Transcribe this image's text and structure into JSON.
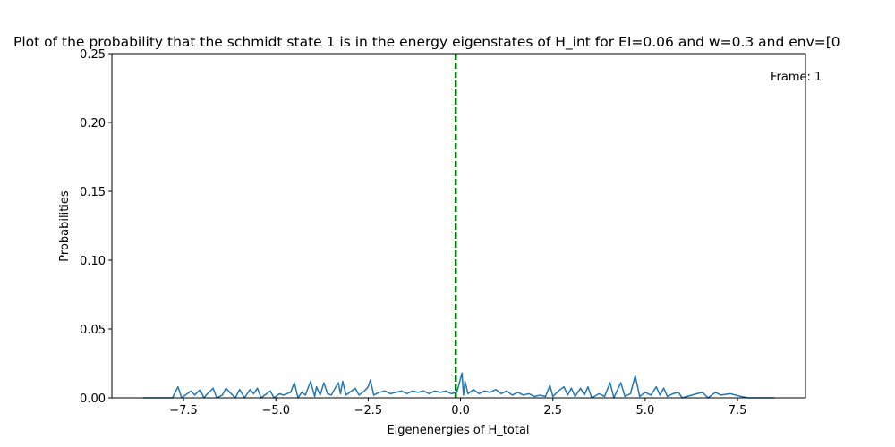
{
  "chart_data": {
    "type": "line",
    "title": "Plot of the probability that the schmidt state 1 is in the energy eigenstates of H_int for EI=0.06 and w=0.3 and env=[0",
    "xlabel": "Eigenenergies of H_total",
    "ylabel": "Probabilities",
    "annotation": "Frame: 1",
    "vline": {
      "x": -0.13,
      "color": "#007700"
    },
    "xlim": [
      -9.44,
      9.34
    ],
    "ylim": [
      0,
      0.25
    ],
    "xticks": [
      {
        "value": -7.5,
        "label": "−7.5"
      },
      {
        "value": -5.0,
        "label": "−5.0"
      },
      {
        "value": -2.5,
        "label": "−2.5"
      },
      {
        "value": 0.0,
        "label": "0.0"
      },
      {
        "value": 2.5,
        "label": "2.5"
      },
      {
        "value": 5.0,
        "label": "5.0"
      },
      {
        "value": 7.5,
        "label": "7.5"
      }
    ],
    "yticks": [
      {
        "value": 0,
        "label": "0.00"
      },
      {
        "value": 0.05,
        "label": "0.05"
      },
      {
        "value": 0.1,
        "label": "0.10"
      },
      {
        "value": 0.15,
        "label": "0.15"
      },
      {
        "value": 0.2,
        "label": "0.20"
      },
      {
        "value": 0.25,
        "label": "0.25"
      }
    ],
    "series": [
      {
        "color": "#1f77b4",
        "x": [
          -8.6,
          -7.8,
          -7.65,
          -7.55,
          -7.3,
          -7.2,
          -7.05,
          -6.95,
          -6.85,
          -6.7,
          -6.6,
          -6.45,
          -6.35,
          -6.25,
          -6.1,
          -5.98,
          -5.85,
          -5.7,
          -5.6,
          -5.5,
          -5.4,
          -5.15,
          -5.05,
          -4.9,
          -4.8,
          -4.6,
          -4.5,
          -4.4,
          -4.3,
          -4.2,
          -4.06,
          -3.95,
          -3.9,
          -3.8,
          -3.7,
          -3.6,
          -3.5,
          -3.31,
          -3.25,
          -3.19,
          -3.1,
          -3.0,
          -2.85,
          -2.75,
          -2.6,
          -2.5,
          -2.44,
          -2.35,
          -2.2,
          -2.05,
          -1.9,
          -1.75,
          -1.6,
          -1.45,
          -1.3,
          -1.15,
          -1.0,
          -0.85,
          -0.7,
          -0.55,
          -0.4,
          -0.25,
          -0.1,
          0.04,
          0.08,
          0.12,
          0.2,
          0.35,
          0.5,
          0.65,
          0.8,
          0.95,
          1.1,
          1.25,
          1.4,
          1.55,
          1.7,
          1.85,
          2.0,
          2.15,
          2.3,
          2.42,
          2.5,
          2.65,
          2.8,
          2.9,
          3.0,
          3.1,
          3.25,
          3.35,
          3.45,
          3.55,
          3.75,
          3.9,
          4.05,
          4.15,
          4.34,
          4.45,
          4.6,
          4.73,
          4.85,
          5.0,
          5.15,
          5.3,
          5.4,
          5.5,
          5.6,
          5.75,
          5.9,
          6.0,
          6.4,
          6.55,
          6.7,
          6.9,
          7.05,
          7.3,
          7.45,
          7.6,
          7.8,
          8.5
        ],
        "values": [
          0,
          0,
          0.008,
          0,
          0.005,
          0.002,
          0.006,
          0,
          0.003,
          0.007,
          0,
          0.002,
          0.007,
          0.004,
          0,
          0.006,
          0,
          0.006,
          0.003,
          0.007,
          0,
          0.005,
          0,
          0.003,
          0.002,
          0.004,
          0.011,
          0,
          0.004,
          0.002,
          0.012,
          0.001,
          0.008,
          0.002,
          0.011,
          0.003,
          0.002,
          0.011,
          0.003,
          0.012,
          0.002,
          0.004,
          0.007,
          0.002,
          0.005,
          0.008,
          0.013,
          0.002,
          0.004,
          0.005,
          0.003,
          0.004,
          0.005,
          0.003,
          0.005,
          0.004,
          0.005,
          0.003,
          0.005,
          0.004,
          0.005,
          0.003,
          0.004,
          0.018,
          0.002,
          0.012,
          0.003,
          0.006,
          0.003,
          0.005,
          0.004,
          0.006,
          0.003,
          0.005,
          0.002,
          0.004,
          0.002,
          0.003,
          0.001,
          0.002,
          0.001,
          0.009,
          0.001,
          0.005,
          0.008,
          0.002,
          0.007,
          0.001,
          0.007,
          0.002,
          0.008,
          0,
          0.003,
          0.001,
          0.011,
          0,
          0.011,
          0.001,
          0.003,
          0.016,
          0.001,
          0.004,
          0.002,
          0.008,
          0.002,
          0.007,
          0.001,
          0.003,
          0.004,
          0,
          0.003,
          0.004,
          0,
          0.004,
          0.002,
          0.003,
          0.002,
          0.001,
          0,
          0
        ]
      }
    ]
  }
}
